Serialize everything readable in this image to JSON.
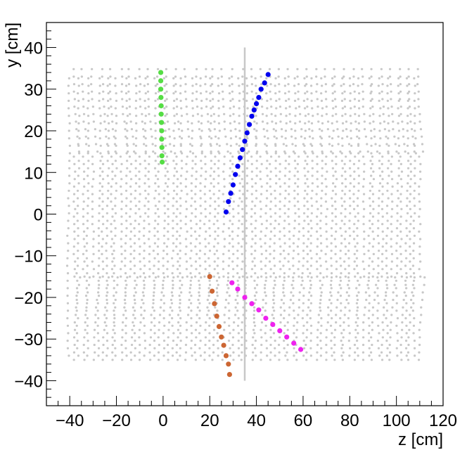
{
  "chart_data": {
    "type": "scatter",
    "title": "",
    "xlabel": "z [cm]",
    "ylabel": "y [cm]",
    "xlim": [
      -50,
      120
    ],
    "ylim": [
      -46,
      46
    ],
    "x_ticks": [
      -40,
      -20,
      0,
      20,
      40,
      60,
      80,
      100,
      120
    ],
    "y_ticks": [
      -40,
      -30,
      -20,
      -10,
      0,
      10,
      20,
      30,
      40
    ],
    "x_tick_labels": [
      "−40",
      "−20",
      "0",
      "20",
      "40",
      "60",
      "80",
      "100",
      "120"
    ],
    "y_tick_labels": [
      "−40",
      "−30",
      "−20",
      "−10",
      "0",
      "10",
      "20",
      "30",
      "40"
    ],
    "grid": false,
    "legend": "none",
    "background_hits": {
      "color": "#c8c8c8",
      "description_type": "dense grey hit pattern",
      "z_range": [
        -40,
        110
      ],
      "y_range": [
        -35,
        35
      ],
      "vertical_line": {
        "z": 35,
        "y": [
          -40,
          40
        ]
      }
    },
    "series": [
      {
        "color": "#55dd44",
        "points": [
          [
            -1.0,
            34.0
          ],
          [
            -1.0,
            32.0
          ],
          [
            -1.0,
            30.0
          ],
          [
            -0.9,
            28.0
          ],
          [
            -0.8,
            26.0
          ],
          [
            -0.8,
            24.0
          ],
          [
            -0.7,
            22.0
          ],
          [
            -0.6,
            20.0
          ],
          [
            -0.6,
            18.0
          ],
          [
            -0.5,
            16.0
          ],
          [
            -0.5,
            14.0
          ],
          [
            -0.4,
            12.5
          ]
        ]
      },
      {
        "color": "#0000ee",
        "points": [
          [
            27.0,
            0.5
          ],
          [
            28.0,
            3.0
          ],
          [
            29.0,
            5.0
          ],
          [
            30.0,
            7.0
          ],
          [
            31.0,
            9.5
          ],
          [
            32.0,
            11.5
          ],
          [
            33.0,
            13.5
          ],
          [
            34.0,
            15.5
          ],
          [
            35.0,
            17.5
          ],
          [
            36.0,
            19.5
          ],
          [
            37.0,
            21.5
          ],
          [
            38.0,
            23.5
          ],
          [
            39.0,
            25.0
          ],
          [
            40.0,
            26.5
          ],
          [
            41.0,
            28.0
          ],
          [
            42.0,
            30.0
          ],
          [
            43.5,
            31.5
          ],
          [
            45.0,
            33.5
          ]
        ]
      },
      {
        "color": "#cc6633",
        "points": [
          [
            20.0,
            -15.0
          ],
          [
            21.0,
            -18.5
          ],
          [
            22.0,
            -21.5
          ],
          [
            23.0,
            -24.5
          ],
          [
            24.0,
            -27.0
          ],
          [
            25.0,
            -29.5
          ],
          [
            26.0,
            -31.5
          ],
          [
            27.0,
            -34.0
          ],
          [
            28.0,
            -36.0
          ],
          [
            28.5,
            -38.5
          ]
        ]
      },
      {
        "color": "#ee22ee",
        "points": [
          [
            29.5,
            -16.5
          ],
          [
            32.0,
            -18.0
          ],
          [
            35.0,
            -20.0
          ],
          [
            38.0,
            -21.5
          ],
          [
            41.0,
            -23.0
          ],
          [
            44.0,
            -25.0
          ],
          [
            47.0,
            -26.5
          ],
          [
            50.0,
            -28.0
          ],
          [
            53.0,
            -29.5
          ],
          [
            56.0,
            -31.0
          ],
          [
            59.0,
            -32.5
          ]
        ]
      }
    ]
  }
}
